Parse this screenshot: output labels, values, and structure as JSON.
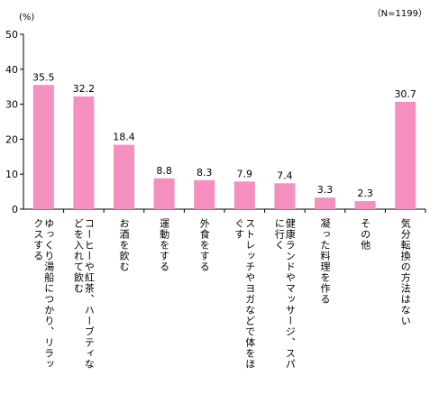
{
  "unit_label": "(%)",
  "sample_note": "（N=1199）",
  "colors": {
    "bar": "#F48FC0",
    "axis": "#000000"
  },
  "chart_data": {
    "type": "bar",
    "title": "",
    "xlabel": "",
    "ylabel": "",
    "ylim": [
      0,
      50
    ],
    "yticks": [
      0,
      10,
      20,
      30,
      40,
      50
    ],
    "grid": false,
    "categories": [
      "ゆっくり湯船につかり、リラックスする",
      "コーヒーや紅茶、ハーブティなどを入れて飲む",
      "お酒を飲む",
      "運動をする",
      "外食をする",
      "ストレッチやヨガなどで体をほぐす",
      "健康ランドやマッサージ、スパに行く",
      "凝った料理を作る",
      "その他",
      "気分転換の方法はない"
    ],
    "category_label_lines": [
      [
        "ゆっくり湯船につかり、リラッ",
        "クスする"
      ],
      [
        "コーヒーや紅茶、ハーブティな",
        "どを入れて飲む"
      ],
      [
        "お酒を飲む"
      ],
      [
        "運動をする"
      ],
      [
        "外食をする"
      ],
      [
        "ストレッチやヨガなどで体をほ",
        "ぐす"
      ],
      [
        "健康ランドやマッサージ、スパ",
        "に行く"
      ],
      [
        "凝った料理を作る"
      ],
      [
        "その他"
      ],
      [
        "気分転換の方法はない"
      ]
    ],
    "values": [
      35.5,
      32.2,
      18.4,
      8.8,
      8.3,
      7.9,
      7.4,
      3.3,
      2.3,
      30.7
    ],
    "value_labels": [
      "35.5",
      "32.2",
      "18.4",
      "8.8",
      "8.3",
      "7.9",
      "7.4",
      "3.3",
      "2.3",
      "30.7"
    ]
  }
}
